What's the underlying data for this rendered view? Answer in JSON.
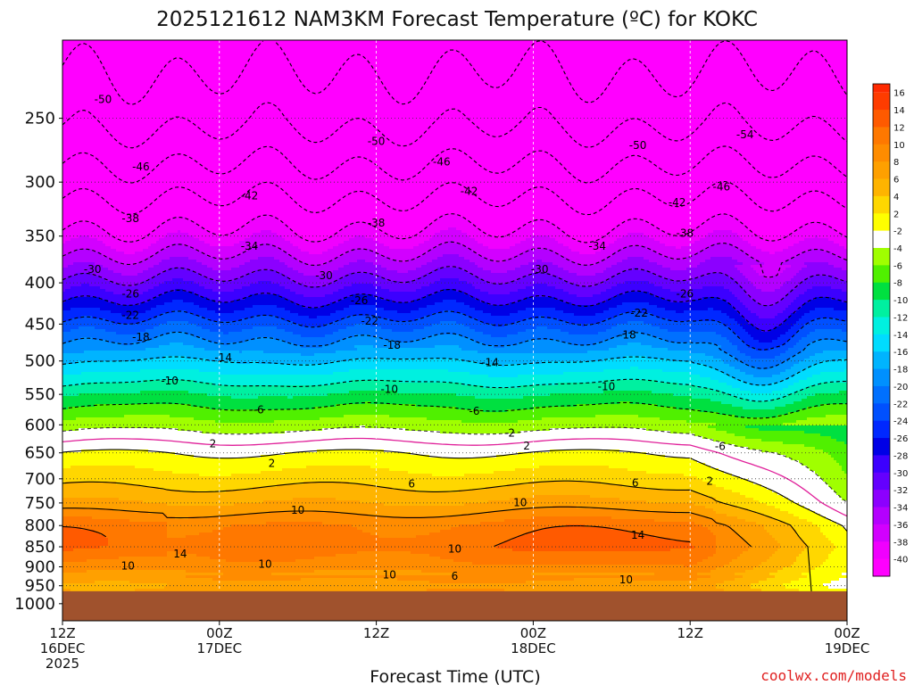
{
  "chart_data": {
    "type": "heatmap",
    "title": "2025121612 NAM3KM Forecast Temperature (ºC) for KOKC",
    "xlabel": "Forecast Time (UTC)",
    "ylabel": "",
    "credit": "coolwx.com/models",
    "x_ticks": [
      {
        "hour": 0,
        "lines": [
          "12Z",
          "16DEC",
          "2025"
        ]
      },
      {
        "hour": 12,
        "lines": [
          "00Z",
          "17DEC"
        ]
      },
      {
        "hour": 24,
        "lines": [
          "12Z"
        ]
      },
      {
        "hour": 36,
        "lines": [
          "00Z",
          "18DEC"
        ]
      },
      {
        "hour": 48,
        "lines": [
          "12Z"
        ]
      },
      {
        "hour": 60,
        "lines": [
          "00Z",
          "19DEC"
        ]
      }
    ],
    "xlim_hours": [
      0,
      60
    ],
    "y_pressure_ticks": [
      250,
      300,
      350,
      400,
      450,
      500,
      550,
      600,
      650,
      700,
      750,
      800,
      850,
      900,
      950,
      1000
    ],
    "y_axis": "pressure (hPa), log scale, top ~200, bottom ~1050",
    "colorbar": {
      "labels": [
        "16",
        "14",
        "12",
        "10",
        "8",
        "6",
        "4",
        "2",
        "-2",
        "-4",
        "-6",
        "-8",
        "-10",
        "-12",
        "-14",
        "-16",
        "-18",
        "-20",
        "-22",
        "-24",
        "-26",
        "-28",
        "-30",
        "-32",
        "-34",
        "-36",
        "-38",
        "-40"
      ],
      "colors": [
        "#ff3c00",
        "#ff5a00",
        "#ff7800",
        "#ff8c00",
        "#ffa000",
        "#ffb400",
        "#ffd700",
        "#ffff00",
        "#ffffff",
        "#a0ff00",
        "#50f000",
        "#00e040",
        "#00f0a0",
        "#00f0e0",
        "#00dcff",
        "#00b4ff",
        "#0090ff",
        "#0070ff",
        "#0050ff",
        "#0028ff",
        "#0000e6",
        "#3c00ff",
        "#6400ff",
        "#8c00ff",
        "#b400ff",
        "#d200ff",
        "#f000ff",
        "#ff00ff"
      ]
    },
    "isotherm_labels": [
      "-54",
      "-50",
      "-46",
      "-42",
      "-38",
      "-34",
      "-30",
      "-26",
      "-22",
      "-18",
      "-14",
      "-10",
      "-6",
      "-2",
      "2",
      "6",
      "10",
      "14"
    ],
    "contour_labels": [
      {
        "v": "-50",
        "h": 3.1,
        "p": 237
      },
      {
        "v": "-50",
        "h": 24.0,
        "p": 267
      },
      {
        "v": "-50",
        "h": 44.0,
        "p": 270
      },
      {
        "v": "-54",
        "h": 52.2,
        "p": 262
      },
      {
        "v": "-46",
        "h": 6.0,
        "p": 287
      },
      {
        "v": "-46",
        "h": 29.0,
        "p": 283
      },
      {
        "v": "-46",
        "h": 50.4,
        "p": 304
      },
      {
        "v": "-42",
        "h": 14.3,
        "p": 312
      },
      {
        "v": "-42",
        "h": 31.1,
        "p": 308
      },
      {
        "v": "-42",
        "h": 47.0,
        "p": 318
      },
      {
        "v": "-38",
        "h": 5.2,
        "p": 333
      },
      {
        "v": "-38",
        "h": 24.0,
        "p": 337
      },
      {
        "v": "-38",
        "h": 47.6,
        "p": 347
      },
      {
        "v": "-34",
        "h": 14.3,
        "p": 360
      },
      {
        "v": "-34",
        "h": 40.9,
        "p": 360
      },
      {
        "v": "-30",
        "h": 2.3,
        "p": 385
      },
      {
        "v": "-30",
        "h": 20.0,
        "p": 392
      },
      {
        "v": "-30",
        "h": 36.5,
        "p": 385
      },
      {
        "v": "-26",
        "h": 5.2,
        "p": 413
      },
      {
        "v": "-26",
        "h": 22.7,
        "p": 421
      },
      {
        "v": "-26",
        "h": 47.6,
        "p": 413
      },
      {
        "v": "-22",
        "h": 5.2,
        "p": 439
      },
      {
        "v": "-22",
        "h": 23.5,
        "p": 446
      },
      {
        "v": "-22",
        "h": 44.1,
        "p": 436
      },
      {
        "v": "-18",
        "h": 6.0,
        "p": 467
      },
      {
        "v": "-18",
        "h": 25.2,
        "p": 478
      },
      {
        "v": "-18",
        "h": 43.2,
        "p": 464
      },
      {
        "v": "-14",
        "h": 12.3,
        "p": 495
      },
      {
        "v": "-14",
        "h": 32.7,
        "p": 502
      },
      {
        "v": "-10",
        "h": 8.2,
        "p": 529
      },
      {
        "v": "-10",
        "h": 25.0,
        "p": 542
      },
      {
        "v": "-10",
        "h": 41.6,
        "p": 538
      },
      {
        "v": "-6",
        "h": 15.0,
        "p": 575
      },
      {
        "v": "-6",
        "h": 31.5,
        "p": 577
      },
      {
        "v": "-6",
        "h": 50.3,
        "p": 638
      },
      {
        "v": "-2",
        "h": 34.2,
        "p": 614
      },
      {
        "v": "2",
        "h": 11.5,
        "p": 633
      },
      {
        "v": "2",
        "h": 16.0,
        "p": 670
      },
      {
        "v": "2",
        "h": 35.5,
        "p": 637
      },
      {
        "v": "2",
        "h": 49.5,
        "p": 705
      },
      {
        "v": "6",
        "h": 26.7,
        "p": 710
      },
      {
        "v": "6",
        "h": 43.8,
        "p": 708
      },
      {
        "v": "10",
        "h": 18.0,
        "p": 766
      },
      {
        "v": "10",
        "h": 35.0,
        "p": 749
      },
      {
        "v": "10",
        "h": 30.0,
        "p": 855
      },
      {
        "v": "10",
        "h": 15.5,
        "p": 893
      },
      {
        "v": "10",
        "h": 5.0,
        "p": 898
      },
      {
        "v": "10",
        "h": 25.0,
        "p": 921
      },
      {
        "v": "10",
        "h": 43.1,
        "p": 934
      },
      {
        "v": "14",
        "h": 9.0,
        "p": 867
      },
      {
        "v": "14",
        "h": 44.0,
        "p": 822
      },
      {
        "v": "6",
        "h": 30.0,
        "p": 925
      }
    ]
  }
}
